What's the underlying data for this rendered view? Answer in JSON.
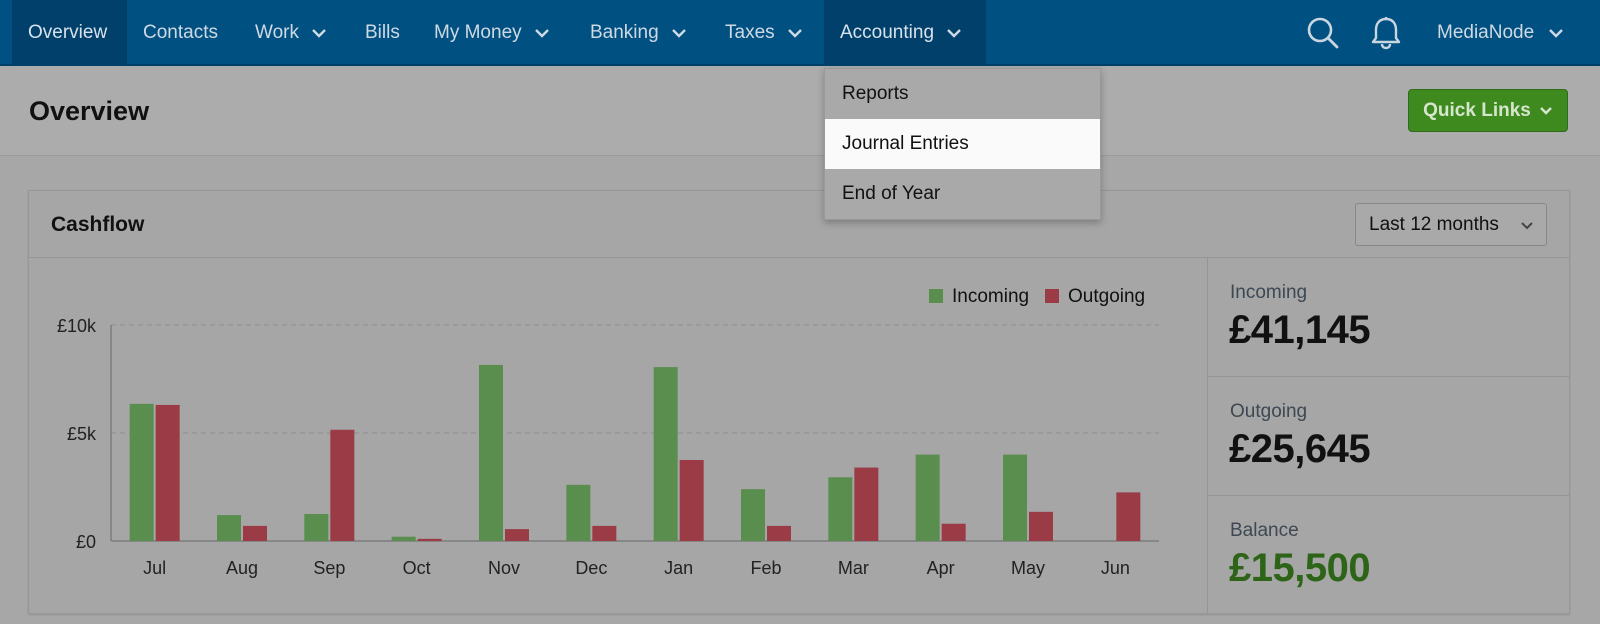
{
  "nav": {
    "items": [
      {
        "label": "Overview",
        "dropdown": false,
        "active": true
      },
      {
        "label": "Contacts",
        "dropdown": false
      },
      {
        "label": "Work",
        "dropdown": true
      },
      {
        "label": "Bills",
        "dropdown": false
      },
      {
        "label": "My Money",
        "dropdown": true
      },
      {
        "label": "Banking",
        "dropdown": true
      },
      {
        "label": "Taxes",
        "dropdown": true
      },
      {
        "label": "Accounting",
        "dropdown": true,
        "open": true
      }
    ],
    "icons": [
      "search-icon",
      "bell-icon"
    ],
    "user_label": "MediaNode"
  },
  "accounting_menu": {
    "items": [
      "Reports",
      "Journal Entries",
      "End of Year"
    ],
    "highlighted": "Journal Entries"
  },
  "header": {
    "title": "Overview",
    "quick_links_label": "Quick Links"
  },
  "cashflow": {
    "title": "Cashflow",
    "period": "Last 12 months",
    "stats": {
      "incoming_label": "Incoming",
      "incoming_value": "£41,145",
      "outgoing_label": "Outgoing",
      "outgoing_value": "£25,645",
      "balance_label": "Balance",
      "balance_value": "£15,500"
    }
  },
  "colors": {
    "nav_bg": "#005081",
    "incoming": "#5a8e4f",
    "outgoing": "#9b3b45",
    "quick_links": "#3e8a1f",
    "balance": "#2e6418"
  },
  "chart_data": {
    "type": "bar",
    "categories": [
      "Jul",
      "Aug",
      "Sep",
      "Oct",
      "Nov",
      "Dec",
      "Jan",
      "Feb",
      "Mar",
      "Apr",
      "May",
      "Jun"
    ],
    "series": [
      {
        "name": "Incoming",
        "values": [
          6350,
          1200,
          1250,
          200,
          8150,
          2600,
          8050,
          2400,
          2950,
          4000,
          4000,
          0
        ]
      },
      {
        "name": "Outgoing",
        "values": [
          6300,
          700,
          5150,
          100,
          550,
          700,
          3750,
          700,
          3400,
          800,
          1350,
          2250
        ]
      }
    ],
    "yticks": [
      "£0",
      "£5k",
      "£10k"
    ],
    "ylim": [
      0,
      10000
    ],
    "legend": "top-right",
    "grid": true
  }
}
